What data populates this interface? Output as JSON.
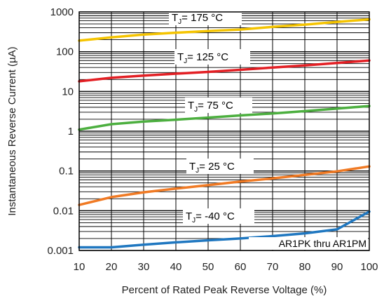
{
  "chart_data": {
    "type": "line",
    "title": "",
    "xlabel": "Percent of Rated Peak Reverse Voltage (%)",
    "ylabel": "Instantaneous Reverse Current (µA)",
    "xlim": [
      10,
      100
    ],
    "ylim": [
      0.001,
      1000
    ],
    "yscale": "log",
    "grid": true,
    "x_ticks": [
      "10",
      "20",
      "30",
      "40",
      "50",
      "60",
      "70",
      "80",
      "90",
      "100"
    ],
    "y_ticks": [
      "0.001",
      "0.01",
      "0.1",
      "1",
      "10",
      "100",
      "1000"
    ],
    "annotation": "AR1PK thru AR1PM",
    "series": [
      {
        "label_main": "T",
        "label_sub": "J",
        "label_rest": "= 175 °C",
        "color": "#f5c400",
        "x": [
          10,
          20,
          30,
          40,
          50,
          60,
          70,
          80,
          90,
          100
        ],
        "y": [
          190,
          230,
          270,
          300,
          330,
          360,
          420,
          480,
          560,
          650
        ]
      },
      {
        "label_main": "T",
        "label_sub": "J",
        "label_rest": "= 125 °C",
        "color": "#e31f24",
        "x": [
          10,
          20,
          30,
          40,
          50,
          60,
          70,
          80,
          90,
          100
        ],
        "y": [
          18,
          22,
          25,
          28,
          31,
          35,
          40,
          45,
          52,
          60
        ]
      },
      {
        "label_main": "T",
        "label_sub": "J",
        "label_rest": "= 75 °C",
        "color": "#4caf3f",
        "x": [
          10,
          20,
          30,
          40,
          50,
          60,
          70,
          80,
          90,
          100
        ],
        "y": [
          1.1,
          1.5,
          1.75,
          1.95,
          2.2,
          2.5,
          2.8,
          3.2,
          3.7,
          4.3
        ]
      },
      {
        "label_main": "T",
        "label_sub": "J",
        "label_rest": "= 25 °C",
        "color": "#f07a24",
        "x": [
          10,
          20,
          30,
          40,
          50,
          60,
          70,
          80,
          90,
          100
        ],
        "y": [
          0.014,
          0.022,
          0.029,
          0.036,
          0.044,
          0.054,
          0.065,
          0.08,
          0.098,
          0.13
        ]
      },
      {
        "label_main": "T",
        "label_sub": "J",
        "label_rest": "= -40 °C",
        "color": "#1f77c0",
        "x": [
          10,
          20,
          30,
          40,
          50,
          60,
          70,
          80,
          90,
          100
        ],
        "y": [
          0.0012,
          0.0012,
          0.0014,
          0.0016,
          0.0018,
          0.002,
          0.0023,
          0.0027,
          0.0034,
          0.0095
        ]
      }
    ]
  }
}
